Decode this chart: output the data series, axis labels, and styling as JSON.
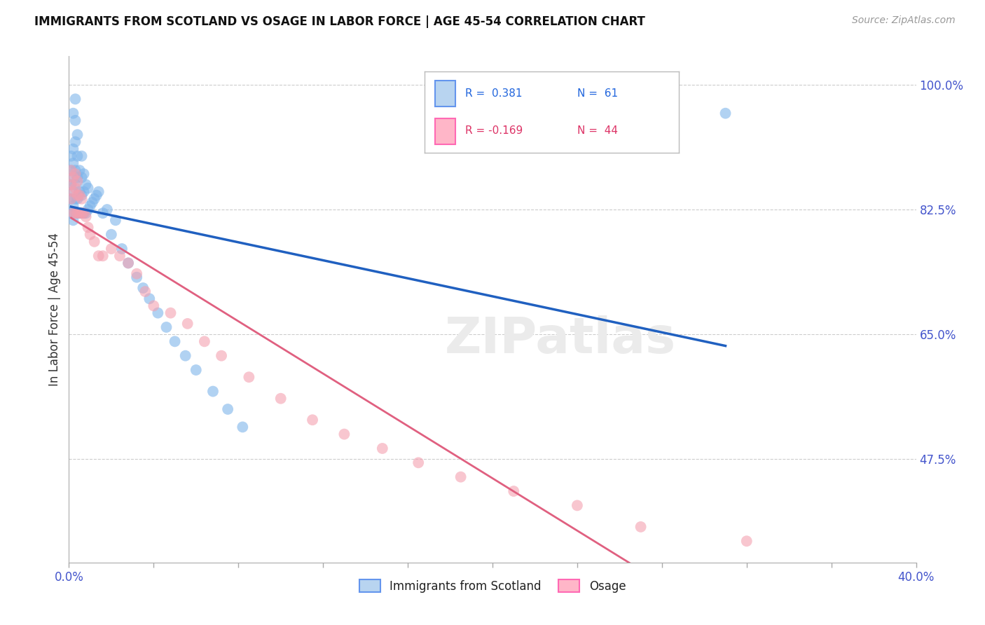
{
  "title": "IMMIGRANTS FROM SCOTLAND VS OSAGE IN LABOR FORCE | AGE 45-54 CORRELATION CHART",
  "source": "Source: ZipAtlas.com",
  "ylabel": "In Labor Force | Age 45-54",
  "xlim": [
    0.0,
    0.4
  ],
  "ylim": [
    0.33,
    1.04
  ],
  "xticks": [
    0.0,
    0.04,
    0.08,
    0.12,
    0.16,
    0.2,
    0.24,
    0.28,
    0.32,
    0.36,
    0.4
  ],
  "xtick_labels": [
    "0.0%",
    "",
    "",
    "",
    "",
    "",
    "",
    "",
    "",
    "",
    "40.0%"
  ],
  "right_yticks": [
    0.475,
    0.65,
    0.825,
    1.0
  ],
  "right_ytick_labels": [
    "47.5%",
    "65.0%",
    "82.5%",
    "100.0%"
  ],
  "background_color": "#FFFFFF",
  "grid_color": "#CCCCCC",
  "watermark_text": "ZIPatlas",
  "scotland_x": [
    0.001,
    0.001,
    0.001,
    0.001,
    0.001,
    0.002,
    0.002,
    0.002,
    0.002,
    0.002,
    0.002,
    0.002,
    0.003,
    0.003,
    0.003,
    0.003,
    0.003,
    0.003,
    0.003,
    0.004,
    0.004,
    0.004,
    0.004,
    0.004,
    0.005,
    0.005,
    0.005,
    0.006,
    0.006,
    0.006,
    0.006,
    0.007,
    0.007,
    0.007,
    0.008,
    0.008,
    0.009,
    0.009,
    0.01,
    0.011,
    0.012,
    0.013,
    0.014,
    0.016,
    0.018,
    0.02,
    0.022,
    0.025,
    0.028,
    0.032,
    0.035,
    0.038,
    0.042,
    0.046,
    0.05,
    0.055,
    0.06,
    0.068,
    0.075,
    0.082,
    0.31
  ],
  "scotland_y": [
    0.82,
    0.84,
    0.86,
    0.88,
    0.9,
    0.81,
    0.83,
    0.85,
    0.87,
    0.89,
    0.91,
    0.96,
    0.82,
    0.84,
    0.86,
    0.88,
    0.92,
    0.95,
    0.98,
    0.82,
    0.84,
    0.87,
    0.9,
    0.93,
    0.82,
    0.85,
    0.88,
    0.82,
    0.845,
    0.87,
    0.9,
    0.82,
    0.85,
    0.875,
    0.82,
    0.86,
    0.825,
    0.855,
    0.83,
    0.835,
    0.84,
    0.845,
    0.85,
    0.82,
    0.825,
    0.79,
    0.81,
    0.77,
    0.75,
    0.73,
    0.715,
    0.7,
    0.68,
    0.66,
    0.64,
    0.62,
    0.6,
    0.57,
    0.545,
    0.52,
    0.96
  ],
  "osage_x": [
    0.001,
    0.001,
    0.001,
    0.002,
    0.002,
    0.002,
    0.003,
    0.003,
    0.003,
    0.004,
    0.004,
    0.004,
    0.005,
    0.005,
    0.006,
    0.006,
    0.007,
    0.008,
    0.009,
    0.01,
    0.012,
    0.014,
    0.016,
    0.02,
    0.024,
    0.028,
    0.032,
    0.036,
    0.04,
    0.048,
    0.056,
    0.064,
    0.072,
    0.085,
    0.1,
    0.115,
    0.13,
    0.148,
    0.165,
    0.185,
    0.21,
    0.24,
    0.27,
    0.32
  ],
  "osage_y": [
    0.84,
    0.86,
    0.88,
    0.82,
    0.85,
    0.87,
    0.82,
    0.855,
    0.875,
    0.82,
    0.845,
    0.865,
    0.82,
    0.845,
    0.82,
    0.84,
    0.82,
    0.815,
    0.8,
    0.79,
    0.78,
    0.76,
    0.76,
    0.77,
    0.76,
    0.75,
    0.735,
    0.71,
    0.69,
    0.68,
    0.665,
    0.64,
    0.62,
    0.59,
    0.56,
    0.53,
    0.51,
    0.49,
    0.47,
    0.45,
    0.43,
    0.41,
    0.38,
    0.36
  ],
  "scotland_color": "#7EB4EA",
  "osage_color": "#F4A0B0",
  "scotland_line_color": "#2060C0",
  "osage_line_color": "#E06080",
  "dot_alpha": 0.6,
  "dot_size": 130,
  "legend_r_blue": "0.381",
  "legend_n_blue": "61",
  "legend_r_pink": "-0.169",
  "legend_n_pink": "44",
  "legend_label_blue": "Immigrants from Scotland",
  "legend_label_pink": "Osage"
}
